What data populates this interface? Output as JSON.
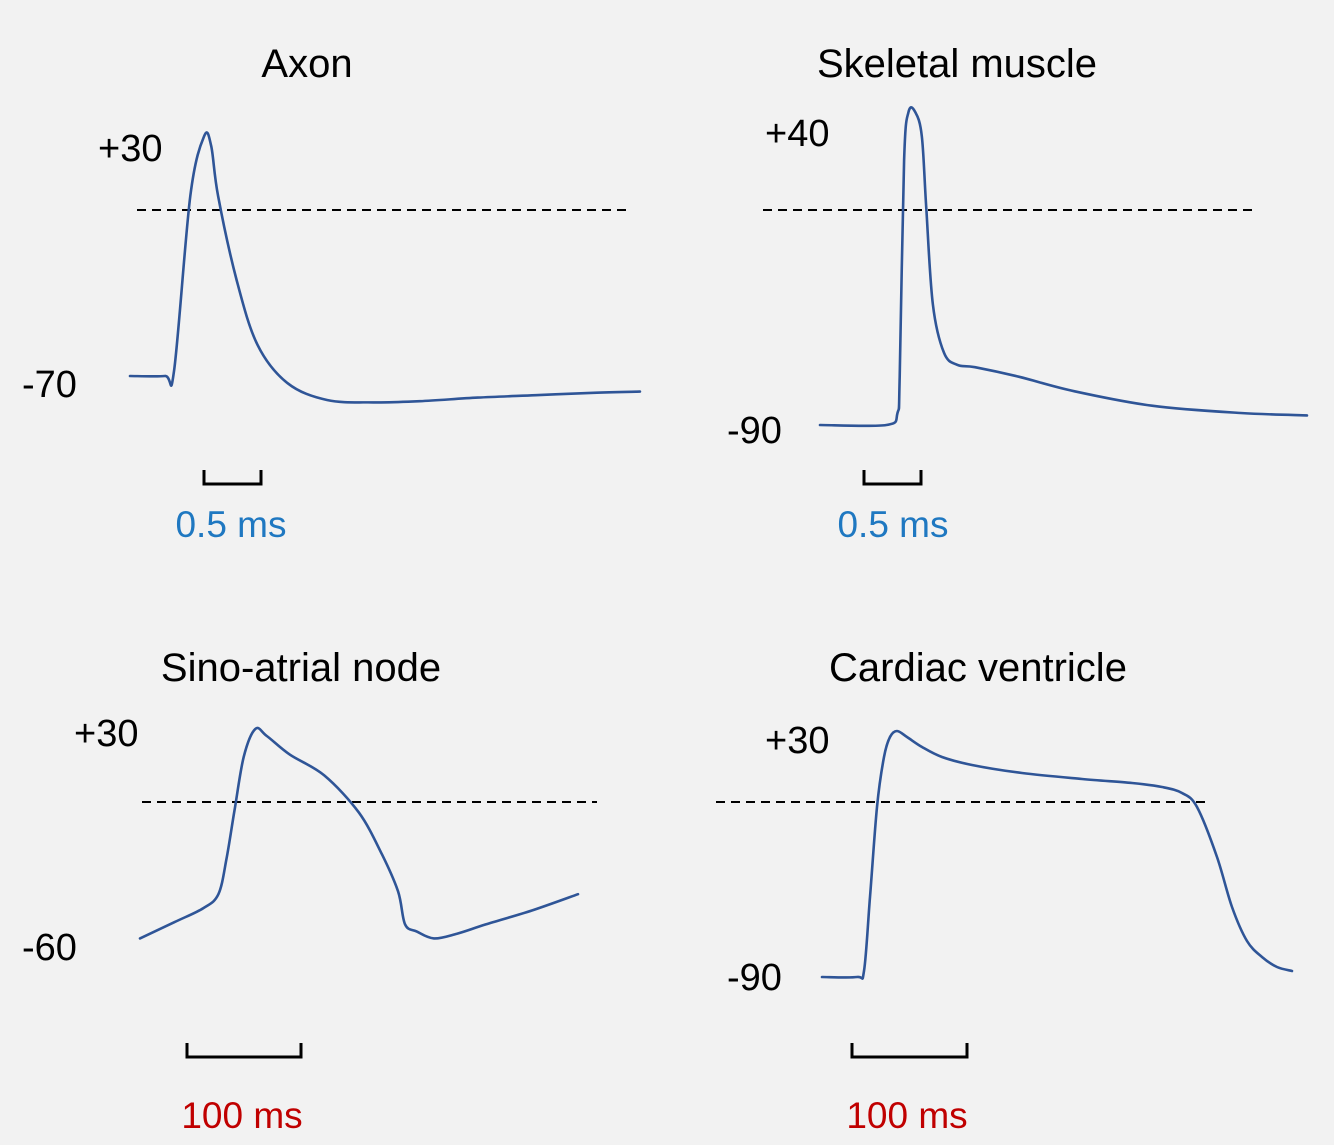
{
  "colors": {
    "background": "#f2f2f2",
    "trace": "#2f5597",
    "scale_fast": "#1f78c1",
    "scale_slow": "#c00000",
    "text": "#000000"
  },
  "chart_data": [
    {
      "type": "line",
      "title": "Axon",
      "ylabels": {
        "top": "+30",
        "bottom": "-70"
      },
      "scale_bar": "0.5 ms",
      "x": [
        0,
        0.15,
        0.19,
        0.26,
        0.32,
        0.35,
        0.38,
        0.46,
        0.55,
        0.68,
        0.85,
        1.05,
        1.25,
        1.5,
        1.75,
        2.0,
        2.2
      ],
      "y": [
        -70,
        -70,
        -68,
        5,
        30,
        26,
        5,
        -30,
        -57,
        -73,
        -80,
        -81,
        -80.5,
        -79,
        -78,
        -77,
        -76.5
      ],
      "ylim": [
        -85,
        30
      ]
    },
    {
      "type": "line",
      "title": "Skeletal muscle",
      "ylabels": {
        "top": "+40",
        "bottom": "-90"
      },
      "scale_bar": "0.5 ms",
      "x": [
        0,
        0.3,
        0.35,
        0.36,
        0.38,
        0.4,
        0.43,
        0.46,
        0.48,
        0.51,
        0.56,
        0.62,
        0.7,
        0.9,
        1.15,
        1.5,
        1.9,
        2.2
      ],
      "y": [
        -90,
        -90,
        -85,
        -70,
        20,
        40,
        40,
        30,
        0,
        -40,
        -60,
        -65,
        -66,
        -70,
        -76,
        -82,
        -85,
        -86
      ],
      "ylim": [
        -90,
        40
      ]
    },
    {
      "type": "line",
      "title": "Sino-atrial node",
      "ylabels": {
        "top": "+30",
        "bottom": "-60"
      },
      "scale_bar": "100 ms",
      "x": [
        0,
        30,
        55,
        68,
        75,
        82,
        90,
        100,
        110,
        130,
        160,
        190,
        210,
        224,
        230,
        240,
        255,
        275,
        300,
        340,
        380
      ],
      "y": [
        -60,
        -53,
        -47,
        -41,
        -26,
        -5,
        18,
        30,
        27,
        19,
        10,
        -6,
        -24,
        -40,
        -54,
        -57,
        -60,
        -58,
        -54,
        -48,
        -41
      ],
      "ylim": [
        -65,
        30
      ]
    },
    {
      "type": "line",
      "title": "Cardiac ventricle",
      "ylabels": {
        "top": "+30",
        "bottom": "-90"
      },
      "scale_bar": "100 ms",
      "x": [
        0,
        35,
        42,
        48,
        55,
        62,
        68,
        75,
        85,
        100,
        120,
        150,
        200,
        260,
        310,
        340,
        360,
        375,
        395,
        410,
        425,
        440,
        455,
        470
      ],
      "y": [
        -90,
        -90,
        -87,
        -50,
        -5,
        20,
        30,
        33,
        30,
        25,
        20,
        16,
        12,
        9,
        7,
        5,
        2,
        -5,
        -30,
        -55,
        -72,
        -80,
        -85,
        -87
      ],
      "ylim": [
        -90,
        33
      ]
    }
  ]
}
